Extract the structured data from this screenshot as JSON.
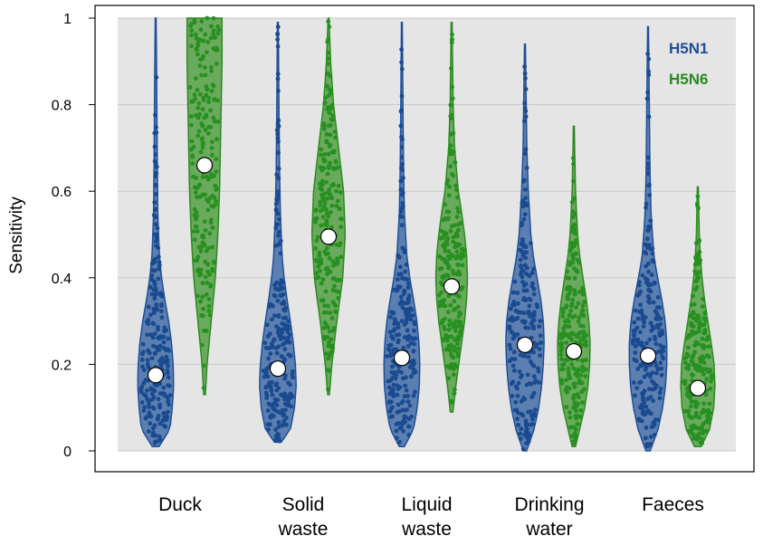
{
  "chart_data": {
    "type": "violin",
    "ylabel": "Sensitivity",
    "ylim": [
      0,
      1
    ],
    "yticks": [
      "0",
      "0.2",
      "0.4",
      "0.6",
      "0.8",
      "1"
    ],
    "categories": [
      [
        "Duck"
      ],
      [
        "Solid",
        "waste"
      ],
      [
        "Liquid",
        "waste"
      ],
      [
        "Drinking",
        "water"
      ],
      [
        "Faeces"
      ]
    ],
    "legend_position": "top-right",
    "grid": true,
    "colors": {
      "panel": "#e5e5e5",
      "H5N1_fill": "#5b7fb0",
      "H5N1_line": "#1f4e96",
      "H5N1_point": "#1a4a8f",
      "H5N6_fill": "#6aaa5c",
      "H5N6_line": "#2a8a1f",
      "H5N6_point": "#279021"
    },
    "series": [
      {
        "name": "H5N1",
        "medians": [
          0.175,
          0.19,
          0.215,
          0.245,
          0.22
        ],
        "ranges": [
          [
            0.01,
            1.0
          ],
          [
            0.02,
            0.99
          ],
          [
            0.01,
            0.99
          ],
          [
            0.0,
            0.94
          ],
          [
            0.0,
            0.98
          ]
        ],
        "shapes": [
          [
            [
              0.01,
              0.08
            ],
            [
              0.05,
              0.34
            ],
            [
              0.1,
              0.4
            ],
            [
              0.15,
              0.43
            ],
            [
              0.2,
              0.42
            ],
            [
              0.25,
              0.38
            ],
            [
              0.3,
              0.31
            ],
            [
              0.35,
              0.22
            ],
            [
              0.4,
              0.14
            ],
            [
              0.45,
              0.09
            ],
            [
              0.55,
              0.05
            ],
            [
              0.7,
              0.035
            ],
            [
              0.85,
              0.025
            ],
            [
              1.0,
              0.01
            ]
          ],
          [
            [
              0.02,
              0.08
            ],
            [
              0.05,
              0.3
            ],
            [
              0.1,
              0.4
            ],
            [
              0.15,
              0.44
            ],
            [
              0.2,
              0.42
            ],
            [
              0.25,
              0.37
            ],
            [
              0.3,
              0.3
            ],
            [
              0.35,
              0.22
            ],
            [
              0.4,
              0.15
            ],
            [
              0.45,
              0.1
            ],
            [
              0.55,
              0.06
            ],
            [
              0.65,
              0.04
            ],
            [
              0.8,
              0.025
            ],
            [
              0.99,
              0.01
            ]
          ],
          [
            [
              0.01,
              0.06
            ],
            [
              0.05,
              0.28
            ],
            [
              0.1,
              0.37
            ],
            [
              0.15,
              0.42
            ],
            [
              0.2,
              0.43
            ],
            [
              0.25,
              0.41
            ],
            [
              0.3,
              0.36
            ],
            [
              0.35,
              0.28
            ],
            [
              0.4,
              0.19
            ],
            [
              0.45,
              0.12
            ],
            [
              0.55,
              0.06
            ],
            [
              0.65,
              0.04
            ],
            [
              0.8,
              0.025
            ],
            [
              0.99,
              0.01
            ]
          ],
          [
            [
              0.0,
              0.04
            ],
            [
              0.05,
              0.22
            ],
            [
              0.1,
              0.33
            ],
            [
              0.15,
              0.4
            ],
            [
              0.2,
              0.44
            ],
            [
              0.25,
              0.46
            ],
            [
              0.3,
              0.44
            ],
            [
              0.35,
              0.38
            ],
            [
              0.4,
              0.29
            ],
            [
              0.45,
              0.2
            ],
            [
              0.5,
              0.14
            ],
            [
              0.6,
              0.08
            ],
            [
              0.7,
              0.045
            ],
            [
              0.8,
              0.03
            ],
            [
              0.94,
              0.01
            ]
          ],
          [
            [
              0.0,
              0.05
            ],
            [
              0.05,
              0.24
            ],
            [
              0.1,
              0.35
            ],
            [
              0.15,
              0.42
            ],
            [
              0.2,
              0.45
            ],
            [
              0.25,
              0.45
            ],
            [
              0.3,
              0.41
            ],
            [
              0.35,
              0.33
            ],
            [
              0.4,
              0.23
            ],
            [
              0.45,
              0.14
            ],
            [
              0.55,
              0.07
            ],
            [
              0.65,
              0.045
            ],
            [
              0.8,
              0.03
            ],
            [
              0.98,
              0.01
            ]
          ]
        ],
        "points_total": 220
      },
      {
        "name": "H5N6",
        "medians": [
          0.66,
          0.495,
          0.38,
          0.23,
          0.145
        ],
        "ranges": [
          [
            0.13,
            1.0
          ],
          [
            0.13,
            1.0
          ],
          [
            0.09,
            0.99
          ],
          [
            0.01,
            0.75
          ],
          [
            0.01,
            0.61
          ]
        ],
        "shapes": [
          [
            [
              0.13,
              0.02
            ],
            [
              0.2,
              0.06
            ],
            [
              0.3,
              0.16
            ],
            [
              0.4,
              0.26
            ],
            [
              0.5,
              0.32
            ],
            [
              0.6,
              0.36
            ],
            [
              0.7,
              0.38
            ],
            [
              0.8,
              0.4
            ],
            [
              0.9,
              0.42
            ],
            [
              1.0,
              0.42
            ]
          ],
          [
            [
              0.13,
              0.02
            ],
            [
              0.2,
              0.08
            ],
            [
              0.3,
              0.2
            ],
            [
              0.4,
              0.34
            ],
            [
              0.5,
              0.4
            ],
            [
              0.6,
              0.36
            ],
            [
              0.7,
              0.24
            ],
            [
              0.8,
              0.12
            ],
            [
              0.9,
              0.05
            ],
            [
              1.0,
              0.01
            ]
          ],
          [
            [
              0.09,
              0.03
            ],
            [
              0.15,
              0.1
            ],
            [
              0.2,
              0.17
            ],
            [
              0.25,
              0.24
            ],
            [
              0.3,
              0.31
            ],
            [
              0.35,
              0.36
            ],
            [
              0.4,
              0.38
            ],
            [
              0.45,
              0.36
            ],
            [
              0.5,
              0.31
            ],
            [
              0.55,
              0.24
            ],
            [
              0.6,
              0.16
            ],
            [
              0.7,
              0.07
            ],
            [
              0.8,
              0.035
            ],
            [
              0.99,
              0.01
            ]
          ],
          [
            [
              0.01,
              0.04
            ],
            [
              0.05,
              0.14
            ],
            [
              0.1,
              0.26
            ],
            [
              0.15,
              0.34
            ],
            [
              0.2,
              0.38
            ],
            [
              0.25,
              0.39
            ],
            [
              0.3,
              0.36
            ],
            [
              0.35,
              0.3
            ],
            [
              0.4,
              0.22
            ],
            [
              0.45,
              0.14
            ],
            [
              0.5,
              0.09
            ],
            [
              0.6,
              0.04
            ],
            [
              0.75,
              0.01
            ]
          ],
          [
            [
              0.01,
              0.08
            ],
            [
              0.05,
              0.28
            ],
            [
              0.1,
              0.38
            ],
            [
              0.15,
              0.41
            ],
            [
              0.2,
              0.39
            ],
            [
              0.25,
              0.32
            ],
            [
              0.3,
              0.24
            ],
            [
              0.35,
              0.16
            ],
            [
              0.4,
              0.1
            ],
            [
              0.45,
              0.06
            ],
            [
              0.5,
              0.035
            ],
            [
              0.61,
              0.01
            ]
          ]
        ],
        "points_total": 220
      }
    ]
  }
}
